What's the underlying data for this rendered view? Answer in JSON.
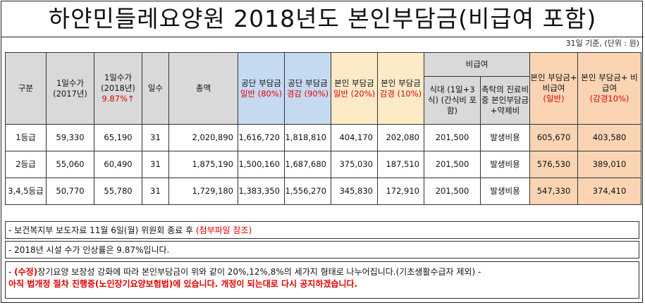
{
  "title": "하얀민들레요양원 2018년도 본인부담금(비급여 포함)",
  "unit_note": "31일 기준, (단위 : 원)",
  "headers": {
    "category": "구분",
    "fee2017": "1일수가 (2017년)",
    "fee2018": "1일수가 (2018년)",
    "fee2018_rate": "9.87%↑",
    "days": "일수",
    "total": "총액",
    "public_general": "공단 부담금",
    "public_general_sub": "일반 (80%)",
    "public_reduced": "공단 부담금",
    "public_reduced_sub": "경감 (90%)",
    "self_general": "본인 부담금",
    "self_general_sub": "일반 (20%)",
    "self_reduced": "본인 부담금",
    "self_reduced_sub": "감경 (10%)",
    "noncovered": "비급여",
    "meal": "식대 (1일+3식) (간식비 포함)",
    "commission": "촉탁의 진료비 중 본인부담금 +약제비",
    "sum_general": "본인 부담금+ 비급여",
    "sum_general_sub": "(일반)",
    "sum_reduced": "본인 부담금+ 비급여",
    "sum_reduced_sub": "(감경10%)"
  },
  "rows": [
    {
      "grade": "1등급",
      "fee2017": "59,330",
      "fee2018": "65,190",
      "days": "31",
      "total": "2,020,890",
      "pg": "1,616,720",
      "pr": "1,818,810",
      "sg": "404,170",
      "sr": "202,080",
      "meal": "201,500",
      "comm": "발생비용",
      "sumg": "605,670",
      "sumr": "403,580"
    },
    {
      "grade": "2등급",
      "fee2017": "55,060",
      "fee2018": "60,490",
      "days": "31",
      "total": "1,875,190",
      "pg": "1,500,160",
      "pr": "1,687,680",
      "sg": "375,030",
      "sr": "187,510",
      "meal": "201,500",
      "comm": "발생비용",
      "sumg": "576,530",
      "sumr": "389,010"
    },
    {
      "grade": "3,4,5등급",
      "fee2017": "50,770",
      "fee2018": "55,780",
      "days": "31",
      "total": "1,729,180",
      "pg": "1,383,350",
      "pr": "1,556,270",
      "sg": "345,830",
      "sr": "172,910",
      "meal": "201,500",
      "comm": "발생비용",
      "sumg": "547,330",
      "sumr": "374,410"
    }
  ],
  "notes": {
    "n1_text": "- 보건복지부 보도자료 11월 6일(월) 위원회 종료 후",
    "n1_red": "(첨부파일 참조)",
    "n2_text": "- 2018년  시설 수가 인상률은 9.87%입니다.",
    "n3_prefix": "- ",
    "n3_red": "(수정)",
    "n3_text": "장기요양 보장성 강화에 따라 본인부담금이 위와 같이 20%,12%,8%의 세가지 형태로 나누어집니다.(기초생활수급자 제외) -",
    "n3_line2": "아직 법개정 절차 진행중(노인장기요양보험법)에 있습니다. 개정이 되는대로 다시 공지하겠습니다."
  }
}
